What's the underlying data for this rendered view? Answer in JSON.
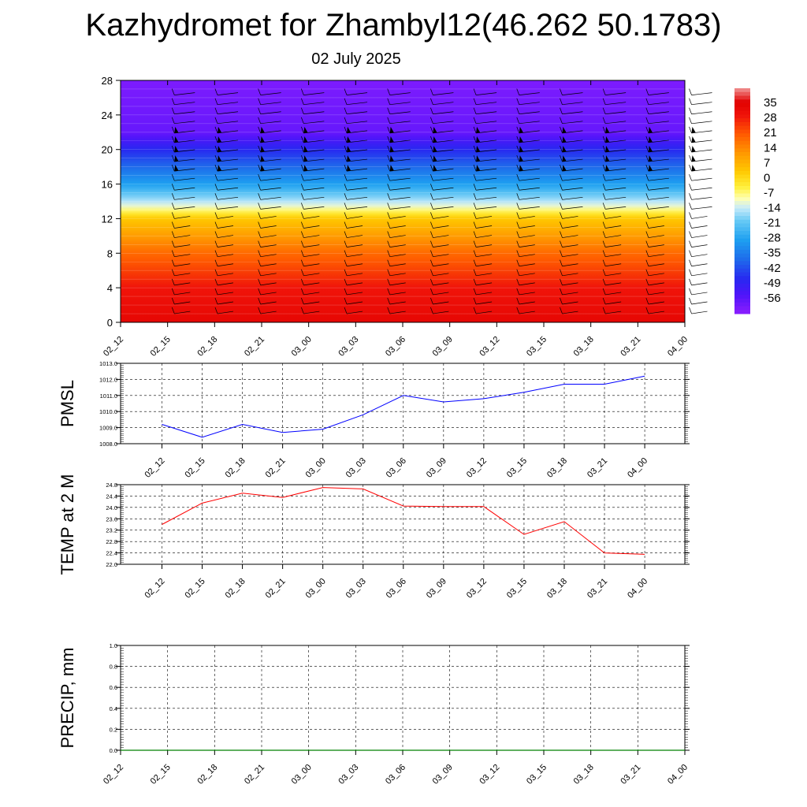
{
  "title": "Kazhydromet for Zhambyl12(46.262 50.1783)",
  "subtitle": "02 July 2025",
  "time_labels": [
    "02_12",
    "02_15",
    "02_18",
    "02_21",
    "03_00",
    "03_03",
    "03_06",
    "03_09",
    "03_12",
    "03_15",
    "03_18",
    "03_21",
    "04_00"
  ],
  "colors": {
    "pmsl_line": "#0000ff",
    "temp_line": "#ff0000",
    "precip_line": "#008000",
    "grid": "#000000"
  },
  "chart_data": [
    {
      "type": "heatmap",
      "name": "temperature-wind-cross-section",
      "x": [
        "02_12",
        "02_15",
        "02_18",
        "02_21",
        "03_00",
        "03_03",
        "03_06",
        "03_09",
        "03_12",
        "03_15",
        "03_18",
        "03_21",
        "04_00"
      ],
      "ylim": [
        0,
        28
      ],
      "yticks": [
        0,
        4,
        8,
        12,
        16,
        20,
        24,
        28
      ],
      "colorbar": {
        "labels": [
          35,
          28,
          21,
          14,
          7,
          0,
          -7,
          -14,
          -21,
          -28,
          -35,
          -42,
          -49,
          -56
        ],
        "range": [
          -60,
          38
        ]
      },
      "profile": [
        {
          "level": 0,
          "value": 30
        },
        {
          "level": 4,
          "value": 26
        },
        {
          "level": 8,
          "value": 16
        },
        {
          "level": 12,
          "value": 2
        },
        {
          "level": 13.5,
          "value": -12
        },
        {
          "level": 16,
          "value": -28
        },
        {
          "level": 20,
          "value": -45
        },
        {
          "level": 22,
          "value": -55
        },
        {
          "level": 28,
          "value": -58
        }
      ],
      "legend": "right"
    },
    {
      "type": "line",
      "name": "pmsl",
      "ylabel": "PMSL",
      "x": [
        "02_12",
        "02_15",
        "02_18",
        "02_21",
        "03_00",
        "03_03",
        "03_06",
        "03_09",
        "03_12",
        "03_15",
        "03_18",
        "03_21",
        "04_00"
      ],
      "values": [
        1009.2,
        1008.4,
        1009.2,
        1008.7,
        1008.9,
        1009.8,
        1011.0,
        1010.6,
        1010.8,
        1011.2,
        1011.7,
        1011.7,
        1012.2
      ],
      "ylim": [
        1008.0,
        1013.0
      ],
      "yticks": [
        "1008.0",
        "1009.0",
        "1010.0",
        "1011.0",
        "1012.0",
        "1013.0"
      ],
      "grid": true
    },
    {
      "type": "line",
      "name": "temp-2m",
      "ylabel": "TEMP at 2 M",
      "x": [
        "02_12",
        "02_15",
        "02_18",
        "02_21",
        "03_00",
        "03_03",
        "03_06",
        "03_09",
        "03_12",
        "03_15",
        "03_18",
        "03_21",
        "04_00"
      ],
      "values": [
        23.4,
        24.15,
        24.5,
        24.35,
        24.7,
        24.65,
        24.05,
        24.03,
        24.03,
        23.05,
        23.5,
        22.4,
        22.35
      ],
      "ylim": [
        22.0,
        24.8
      ],
      "yticks": [
        "22.0",
        "22.4",
        "22.8",
        "23.2",
        "23.6",
        "24.0",
        "24.4",
        "24.8"
      ],
      "grid": true
    },
    {
      "type": "line",
      "name": "precip",
      "ylabel": "PRECIP, mm",
      "x": [
        "02_12",
        "02_15",
        "02_18",
        "02_21",
        "03_00",
        "03_03",
        "03_06",
        "03_09",
        "03_12",
        "03_15",
        "03_18",
        "03_21",
        "04_00"
      ],
      "values": [
        0,
        0,
        0,
        0,
        0,
        0,
        0,
        0,
        0,
        0,
        0,
        0,
        0
      ],
      "ylim": [
        0.0,
        1.0
      ],
      "yticks": [
        "0.0",
        "0.2",
        "0.4",
        "0.6",
        "0.8",
        "1.0"
      ],
      "grid": true
    }
  ]
}
